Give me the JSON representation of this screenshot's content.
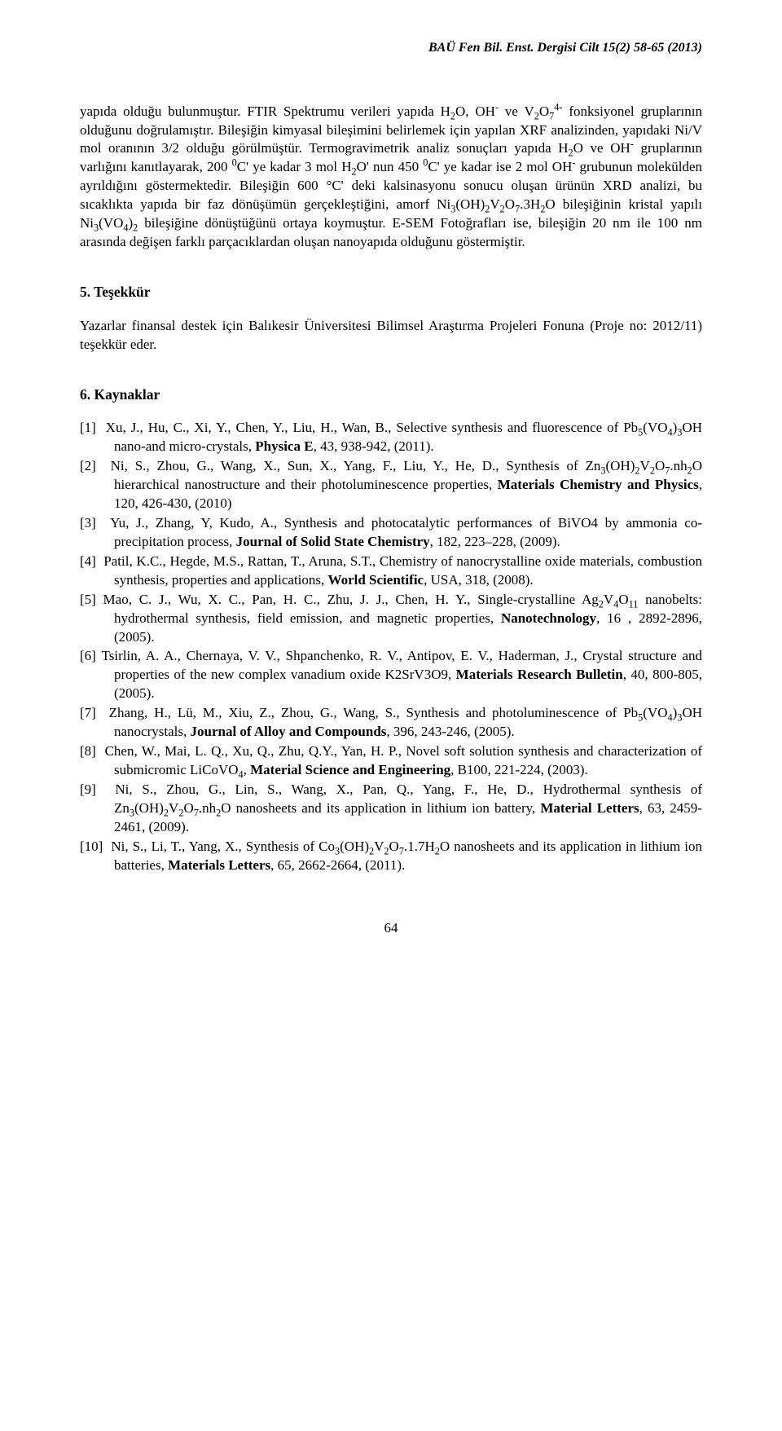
{
  "journal_header": "BAÜ Fen Bil. Enst. Dergisi Cilt 15(2) 58-65 (2013)",
  "body_paragraph_html": "yapıda olduğu bulunmuştur. FTIR Spektrumu verileri yapıda H<sub>2</sub>O, OH<sup>-</sup> ve V<sub>2</sub>O<sub>7</sub><sup>4-</sup> fonksiyonel gruplarının olduğunu doğrulamıştır. Bileşiğin kimyasal bileşimini belirlemek için yapılan XRF analizinden, yapıdaki Ni/V mol oranının 3/2 olduğu görülmüştür. Termogravimetrik analiz sonuçları yapıda H<sub>2</sub>O ve OH<sup>-</sup> gruplarının varlığını kanıtlayarak, 200 <sup>0</sup>C' ye kadar 3 mol H<sub>2</sub>O' nun 450 <sup>0</sup>C' ye kadar ise 2 mol OH<sup>-</sup> grubunun molekülden ayrıldığını göstermektedir. Bileşiğin 600 °C' deki kalsinasyonu sonucu oluşan ürünün XRD analizi, bu sıcaklıkta yapıda bir faz dönüşümün gerçekleştiğini, amorf Ni<sub>3</sub>(OH)<sub>2</sub>V<sub>2</sub>O<sub>7</sub>.3H<sub>2</sub>O bileşiğinin kristal yapılı Ni<sub>3</sub>(VO<sub>4</sub>)<sub>2</sub> bileşiğine dönüştüğünü ortaya koymuştur. E-SEM Fotoğrafları ise, bileşiğin 20 nm ile 100 nm arasında değişen farklı parçacıklardan oluşan nanoyapıda olduğunu göstermiştir.",
  "sections": {
    "acknowledgements": {
      "heading": "5. Teşekkür",
      "text": "Yazarlar finansal destek için Balıkesir Üniversitesi Bilimsel Araştırma Projeleri Fonuna (Proje no: 2012/11) teşekkür eder."
    },
    "references": {
      "heading": "6. Kaynaklar",
      "items_html": [
        "[1]&nbsp;&nbsp;Xu, J., Hu, C., Xi, Y., Chen, Y., Liu, H., Wan, B., Selective synthesis and fluorescence of Pb<sub>5</sub>(VO<sub>4</sub>)<sub>3</sub>OH nano-and micro-crystals, <b>Physica E</b>, 43, 938-942, (2011).",
        "[2]&nbsp;&nbsp;Ni, S., Zhou, G., Wang, X., Sun, X., Yang, F., Liu, Y., He, D., Synthesis of Zn<sub>3</sub>(OH)<sub>2</sub>V<sub>2</sub>O<sub>7</sub>.nh<sub>2</sub>O hierarchical nanostructure and their photoluminescence properties, <b>Materials Chemistry and Physics</b>, 120, 426-430, (2010)",
        "[3]&nbsp;&nbsp;Yu, J., Zhang, Y, Kudo, A., Synthesis and photocatalytic performances of BiVO4 by ammonia co-precipitation process, <b>Journal of Solid State Chemistry</b>, 182, 223–228, (2009).",
        "[4]&nbsp;&nbsp;Patil, K.C., Hegde, M.S., Rattan, T., Aruna, S.T., Chemistry of nanocrystalline oxide materials, combustion synthesis, properties and applications, <b>World Scientific</b>, USA, 318, (2008).",
        "[5]&nbsp;Mao, C. J., Wu, X. C., Pan, H. C., Zhu, J. J., Chen, H. Y., Single-crystalline Ag<sub>2</sub>V<sub>4</sub>O<sub>11</sub> nanobelts: hydrothermal synthesis, field emission, and magnetic properties, <b>Nanotechnology</b>, 16 , 2892-2896, (2005).",
        "[6]&nbsp;Tsirlin, A. A., Chernaya, V. V., Shpanchenko, R. V., Antipov, E. V., Haderman, J., Crystal structure and properties of the new complex vanadium oxide K2SrV3O9, <b>Materials Research Bulletin</b>, 40, 800-805, (2005).",
        "[7]&nbsp;&nbsp;Zhang, H., Lü, M., Xiu, Z., Zhou, G., Wang, S., Synthesis and photoluminescence of Pb<sub>5</sub>(VO<sub>4</sub>)<sub>3</sub>OH nanocrystals, <b>Journal of Alloy and Compounds</b>, 396, 243-246, (2005).",
        "[8]&nbsp;&nbsp;Chen, W., Mai, L. Q., Xu, Q., Zhu, Q.Y., Yan, H. P., Novel soft solution synthesis and characterization of submicromic LiCoVO<sub>4</sub>, <b>Material Science and Engineering</b>, B100, 221-224, (2003).",
        "[9]&nbsp;&nbsp;Ni, S., Zhou, G., Lin, S., Wang, X., Pan, Q., Yang, F., He, D., Hydrothermal synthesis of Zn<sub>3</sub>(OH)<sub>2</sub>V<sub>2</sub>O<sub>7</sub>.nh<sub>2</sub>O nanosheets and its application in lithium ion battery, <b>Material Letters</b>, 63, 2459-2461, (2009).",
        "[10]&nbsp;&nbsp;Ni, S., Li, T., Yang, X., Synthesis of Co<sub>3</sub>(OH)<sub>2</sub>V<sub>2</sub>O<sub>7</sub>.1.7H<sub>2</sub>O nanosheets and its application in lithium ion batteries, <b>Materials Letters</b>, 65, 2662-2664, (2011)."
      ]
    }
  },
  "page_number": "64"
}
